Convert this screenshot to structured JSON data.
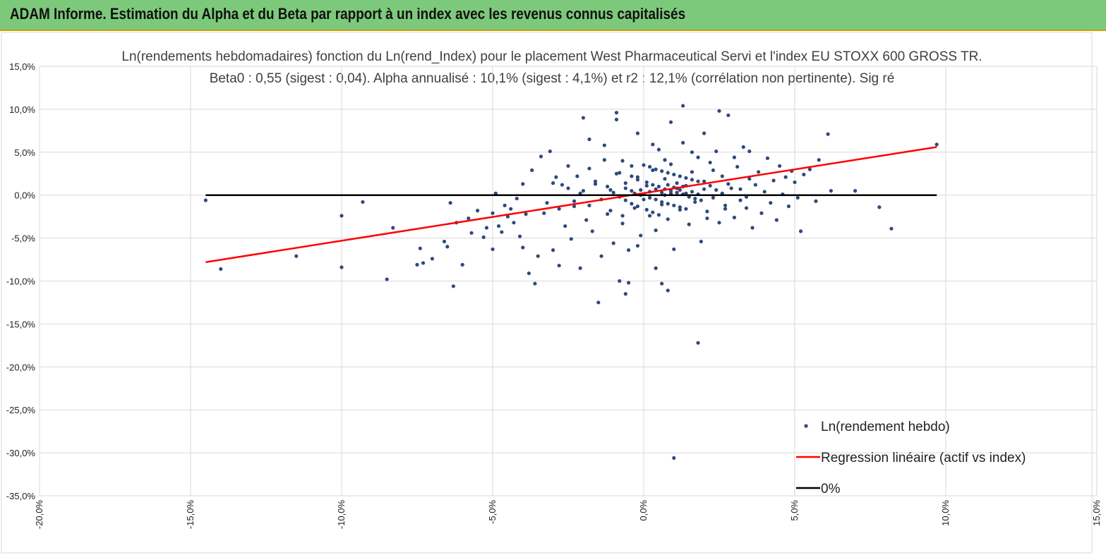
{
  "header": {
    "title": "ADAM Informe. Estimation du Alpha et du Beta par rapport à un index avec les revenus connus capitalisés"
  },
  "chart_data": {
    "type": "scatter",
    "title": "Ln(rendements hebdomadaires) fonction du Ln(rend_Index) pour le placement West Pharmaceutical Servi et l'index EU STOXX 600 GROSS TR.",
    "subtitle": "Beta0 : 0,55 (sigest : 0,04). Alpha annualisé : 10,1% (sigest : 4,1%) et r2 : 12,1% (corrélation non pertinente). Sig ré",
    "xlim": [
      -0.2,
      0.15
    ],
    "ylim": [
      -0.35,
      0.15
    ],
    "x_ticks": [
      -0.2,
      -0.15,
      -0.1,
      -0.05,
      0.0,
      0.05,
      0.1,
      0.15
    ],
    "y_ticks": [
      0.15,
      0.1,
      0.05,
      0.0,
      -0.05,
      -0.1,
      -0.15,
      -0.2,
      -0.25,
      -0.3,
      -0.35
    ],
    "x_tick_labels": [
      "-20,0%",
      "-15,0%",
      "-10,0%",
      "-5,0%",
      "0,0%",
      "5,0%",
      "10,0%",
      "15,0%"
    ],
    "y_tick_labels": [
      "15,0%",
      "10,0%",
      "5,0%",
      "0,0%",
      "-5,0%",
      "-10,0%",
      "-15,0%",
      "-20,0%",
      "-25,0%",
      "-30,0%",
      "-35,0%"
    ],
    "grid": true,
    "legend_position": "bottom-right",
    "series": [
      {
        "name": "Ln(rendement hebdo)",
        "kind": "scatter",
        "color": "#2e4a7d",
        "points": [
          [
            -0.145,
            -0.006
          ],
          [
            -0.14,
            -0.086
          ],
          [
            -0.115,
            -0.071
          ],
          [
            -0.1,
            -0.084
          ],
          [
            -0.1,
            -0.024
          ],
          [
            -0.093,
            -0.008
          ],
          [
            -0.085,
            -0.098
          ],
          [
            -0.083,
            -0.038
          ],
          [
            -0.075,
            -0.081
          ],
          [
            -0.074,
            -0.062
          ],
          [
            -0.073,
            -0.079
          ],
          [
            -0.07,
            -0.074
          ],
          [
            -0.066,
            -0.054
          ],
          [
            -0.065,
            -0.06
          ],
          [
            -0.064,
            -0.009
          ],
          [
            -0.063,
            -0.106
          ],
          [
            -0.062,
            -0.032
          ],
          [
            -0.06,
            -0.081
          ],
          [
            -0.058,
            -0.027
          ],
          [
            -0.057,
            -0.044
          ],
          [
            -0.055,
            -0.018
          ],
          [
            -0.053,
            -0.049
          ],
          [
            -0.052,
            -0.038
          ],
          [
            -0.05,
            -0.021
          ],
          [
            -0.048,
            -0.036
          ],
          [
            -0.047,
            -0.043
          ],
          [
            -0.045,
            -0.025
          ],
          [
            -0.044,
            -0.016
          ],
          [
            -0.043,
            -0.032
          ],
          [
            -0.042,
            -0.004
          ],
          [
            -0.04,
            -0.061
          ],
          [
            -0.05,
            -0.063
          ],
          [
            -0.049,
            0.002
          ],
          [
            -0.046,
            -0.012
          ],
          [
            -0.041,
            -0.048
          ],
          [
            -0.04,
            0.013
          ],
          [
            -0.039,
            -0.022
          ],
          [
            -0.038,
            -0.091
          ],
          [
            -0.037,
            0.029
          ],
          [
            -0.036,
            -0.103
          ],
          [
            -0.035,
            -0.071
          ],
          [
            -0.034,
            0.045
          ],
          [
            -0.033,
            -0.021
          ],
          [
            -0.032,
            -0.009
          ],
          [
            -0.031,
            0.051
          ],
          [
            -0.03,
            -0.064
          ],
          [
            -0.029,
            0.021
          ],
          [
            -0.028,
            -0.082
          ],
          [
            -0.027,
            0.012
          ],
          [
            -0.026,
            -0.036
          ],
          [
            -0.025,
            0.034
          ],
          [
            -0.024,
            -0.051
          ],
          [
            -0.023,
            -0.013
          ],
          [
            -0.022,
            0.022
          ],
          [
            -0.021,
            -0.085
          ],
          [
            -0.021,
            0.002
          ],
          [
            -0.02,
            0.09
          ],
          [
            -0.019,
            -0.029
          ],
          [
            -0.018,
            0.031
          ],
          [
            -0.017,
            -0.042
          ],
          [
            -0.016,
            0.013
          ],
          [
            -0.015,
            -0.125
          ],
          [
            -0.014,
            -0.071
          ],
          [
            -0.013,
            0.041
          ],
          [
            -0.012,
            -0.022
          ],
          [
            -0.011,
            0.006
          ],
          [
            -0.01,
            -0.056
          ],
          [
            -0.009,
            0.088
          ],
          [
            -0.008,
            0.026
          ],
          [
            -0.007,
            -0.033
          ],
          [
            -0.006,
            0.014
          ],
          [
            -0.005,
            -0.064
          ],
          [
            -0.004,
            0.034
          ],
          [
            -0.003,
            -0.015
          ],
          [
            -0.002,
            0.021
          ],
          [
            -0.001,
            -0.047
          ],
          [
            -0.002,
            0.072
          ],
          [
            0.0,
            -0.005
          ],
          [
            0.001,
            0.011
          ],
          [
            0.002,
            -0.024
          ],
          [
            0.003,
            0.029
          ],
          [
            0.004,
            -0.041
          ],
          [
            0.005,
            0.053
          ],
          [
            0.006,
            -0.011
          ],
          [
            0.007,
            0.019
          ],
          [
            0.008,
            -0.028
          ],
          [
            0.009,
            0.036
          ],
          [
            0.01,
            -0.063
          ],
          [
            0.011,
            0.014
          ],
          [
            0.012,
            -0.017
          ],
          [
            0.013,
            0.061
          ],
          [
            0.014,
            0.002
          ],
          [
            0.015,
            -0.034
          ],
          [
            0.016,
            0.027
          ],
          [
            0.017,
            -0.008
          ],
          [
            0.018,
            0.044
          ],
          [
            0.019,
            -0.054
          ],
          [
            0.02,
            0.016
          ],
          [
            0.021,
            -0.019
          ],
          [
            0.022,
            0.038
          ],
          [
            0.023,
            -0.003
          ],
          [
            0.024,
            0.051
          ],
          [
            0.025,
            -0.032
          ],
          [
            0.026,
            0.022
          ],
          [
            0.027,
            -0.012
          ],
          [
            0.028,
            0.093
          ],
          [
            0.029,
            0.008
          ],
          [
            0.03,
            -0.026
          ],
          [
            0.031,
            0.033
          ],
          [
            0.032,
            -0.006
          ],
          [
            0.033,
            0.056
          ],
          [
            0.034,
            -0.015
          ],
          [
            0.035,
            0.019
          ],
          [
            0.036,
            -0.038
          ],
          [
            0.037,
            0.012
          ],
          [
            0.038,
            0.027
          ],
          [
            0.039,
            -0.021
          ],
          [
            0.04,
            0.004
          ],
          [
            0.041,
            0.043
          ],
          [
            0.042,
            -0.009
          ],
          [
            0.043,
            0.017
          ],
          [
            0.044,
            -0.029
          ],
          [
            0.045,
            0.034
          ],
          [
            0.046,
            0.001
          ],
          [
            0.047,
            0.021
          ],
          [
            0.048,
            -0.013
          ],
          [
            0.049,
            0.028
          ],
          [
            0.05,
            0.015
          ],
          [
            0.051,
            -0.003
          ],
          [
            0.053,
            0.024
          ],
          [
            0.055,
            0.03
          ],
          [
            0.057,
            -0.007
          ],
          [
            0.058,
            0.041
          ],
          [
            0.061,
            0.071
          ],
          [
            0.062,
            0.005
          ],
          [
            0.07,
            0.005
          ],
          [
            0.078,
            -0.014
          ],
          [
            0.082,
            -0.039
          ],
          [
            0.097,
            0.059
          ],
          [
            0.052,
            -0.042
          ],
          [
            -0.008,
            -0.1
          ],
          [
            -0.006,
            -0.115
          ],
          [
            -0.005,
            -0.102
          ],
          [
            0.006,
            -0.103
          ],
          [
            0.008,
            -0.111
          ],
          [
            0.018,
            -0.172
          ],
          [
            0.01,
            -0.306
          ],
          [
            0.004,
            -0.085
          ],
          [
            -0.002,
            -0.059
          ],
          [
            0.025,
            0.098
          ],
          [
            0.013,
            0.104
          ],
          [
            -0.009,
            0.096
          ],
          [
            0.003,
            0.059
          ],
          [
            0.009,
            0.085
          ],
          [
            0.02,
            0.072
          ],
          [
            -0.018,
            0.065
          ],
          [
            -0.013,
            0.058
          ],
          [
            0.016,
            0.05
          ],
          [
            0.035,
            0.051
          ],
          [
            0.03,
            0.044
          ],
          [
            0.007,
            0.041
          ],
          [
            -0.007,
            0.04
          ],
          [
            0.0,
            0.035
          ],
          [
            0.002,
            0.033
          ],
          [
            0.004,
            0.03
          ],
          [
            0.006,
            0.028
          ],
          [
            0.008,
            0.026
          ],
          [
            0.01,
            0.024
          ],
          [
            0.012,
            0.022
          ],
          [
            0.014,
            0.02
          ],
          [
            0.016,
            0.018
          ],
          [
            0.018,
            0.016
          ],
          [
            -0.004,
            0.022
          ],
          [
            -0.002,
            0.018
          ],
          [
            0.001,
            0.015
          ],
          [
            0.003,
            0.012
          ],
          [
            0.005,
            0.01
          ],
          [
            0.007,
            0.007
          ],
          [
            0.009,
            0.005
          ],
          [
            0.011,
            0.003
          ],
          [
            0.013,
            0.001
          ],
          [
            0.015,
            -0.002
          ],
          [
            0.017,
            -0.004
          ],
          [
            0.019,
            -0.006
          ],
          [
            -0.006,
            0.008
          ],
          [
            -0.004,
            0.005
          ],
          [
            -0.003,
            0.002
          ],
          [
            -0.001,
            0.0
          ],
          [
            0.002,
            -0.003
          ],
          [
            0.004,
            -0.005
          ],
          [
            0.006,
            -0.008
          ],
          [
            0.008,
            -0.01
          ],
          [
            0.01,
            -0.012
          ],
          [
            0.012,
            -0.014
          ],
          [
            0.014,
            -0.016
          ],
          [
            -0.01,
            0.003
          ],
          [
            -0.008,
            -0.002
          ],
          [
            -0.006,
            -0.006
          ],
          [
            -0.004,
            -0.01
          ],
          [
            -0.002,
            -0.013
          ],
          [
            0.001,
            -0.017
          ],
          [
            0.003,
            -0.02
          ],
          [
            0.005,
            -0.023
          ],
          [
            0.007,
            0.0
          ],
          [
            0.009,
            0.002
          ],
          [
            0.011,
            0.008
          ],
          [
            0.013,
            0.01
          ],
          [
            -0.001,
            0.006
          ],
          [
            0.0,
            0.001
          ],
          [
            0.002,
            0.004
          ],
          [
            0.004,
            0.007
          ],
          [
            0.006,
            0.003
          ],
          [
            0.008,
            0.012
          ],
          [
            0.01,
            0.009
          ],
          [
            0.012,
            0.006
          ],
          [
            0.014,
            0.011
          ],
          [
            0.016,
            0.004
          ],
          [
            0.018,
            0.001
          ],
          [
            0.02,
            0.007
          ],
          [
            -0.012,
            0.01
          ],
          [
            -0.014,
            -0.005
          ],
          [
            -0.016,
            0.016
          ],
          [
            -0.018,
            -0.012
          ],
          [
            -0.02,
            0.005
          ],
          [
            0.022,
            0.011
          ],
          [
            0.024,
            0.006
          ],
          [
            0.026,
            0.002
          ],
          [
            0.028,
            0.013
          ],
          [
            -0.011,
            -0.018
          ],
          [
            -0.009,
            0.025
          ],
          [
            -0.007,
            -0.024
          ],
          [
            0.021,
            -0.027
          ],
          [
            0.023,
            0.029
          ],
          [
            0.027,
            -0.016
          ],
          [
            -0.025,
            0.008
          ],
          [
            -0.023,
            -0.007
          ],
          [
            -0.03,
            0.014
          ],
          [
            -0.028,
            -0.016
          ],
          [
            0.032,
            0.007
          ],
          [
            0.034,
            -0.002
          ]
        ]
      },
      {
        "name": "Regression linéaire (actif vs index)",
        "kind": "line",
        "color": "#ff0000",
        "points": [
          [
            -0.145,
            -0.078
          ],
          [
            0.097,
            0.056
          ]
        ]
      },
      {
        "name": "0%",
        "kind": "line",
        "color": "#000000",
        "points": [
          [
            -0.145,
            0.0
          ],
          [
            0.097,
            0.0
          ]
        ]
      }
    ]
  }
}
